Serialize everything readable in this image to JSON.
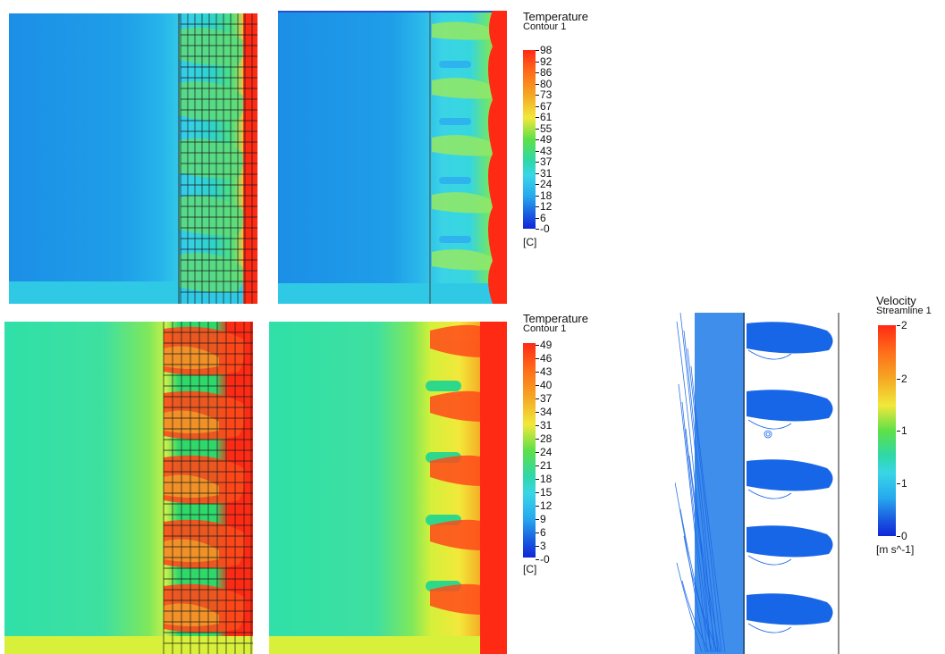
{
  "legends": {
    "temp1": {
      "title": "Temperature",
      "subtitle": "Contour 1",
      "ticks": [
        "98",
        "92",
        "86",
        "80",
        "73",
        "67",
        "61",
        "55",
        "49",
        "43",
        "37",
        "31",
        "24",
        "18",
        "12",
        "6",
        "-0"
      ],
      "unit": "[C]"
    },
    "temp2": {
      "title": "Temperature",
      "subtitle": "Contour 1",
      "ticks": [
        "49",
        "46",
        "43",
        "40",
        "37",
        "34",
        "31",
        "28",
        "24",
        "21",
        "18",
        "15",
        "12",
        "9",
        "6",
        "3",
        "-0"
      ],
      "unit": "[C]"
    },
    "velocity": {
      "title": "Velocity",
      "subtitle": "Streamline 1",
      "ticks": [
        "2",
        "2",
        "1",
        "1",
        "0"
      ],
      "unit": "[m s^-1]"
    }
  },
  "colors": {
    "cold_blue": "#1f9ee8",
    "cyan": "#39d6e6",
    "green": "#27d84b",
    "yellow": "#f2e83a",
    "orange": "#f59a23",
    "red": "#ff2a14",
    "teal_field": "#3fe0a0",
    "yellowgreen_field": "#c8f04a",
    "streamline_blue": "#1766e8"
  }
}
